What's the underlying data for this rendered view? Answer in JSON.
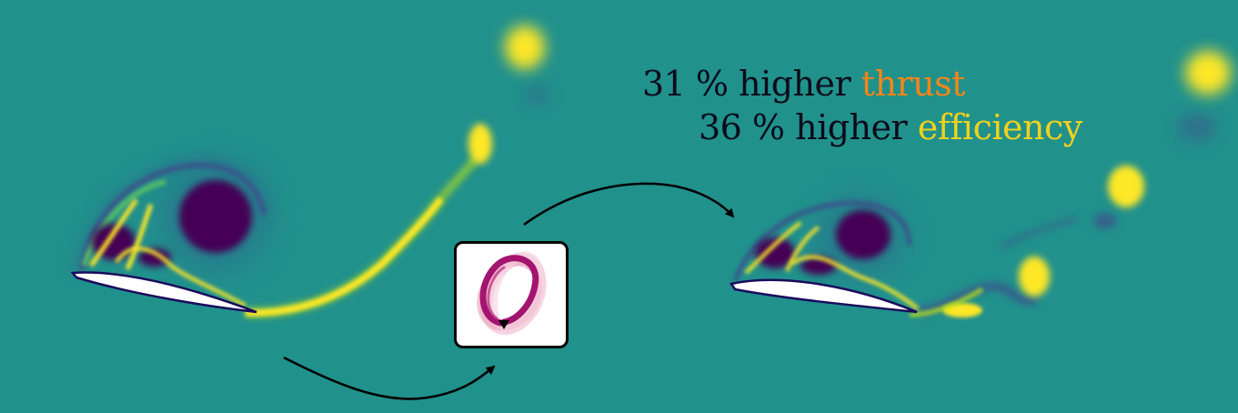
{
  "headline": {
    "thrust_line": {
      "prefix": "31 % higher",
      "highlight": "thrust",
      "highlight_color": "#f58518"
    },
    "efficiency_line": {
      "prefix": "36 % higher",
      "highlight": "efficiency",
      "highlight_color": "#f0d21c"
    }
  },
  "colors": {
    "background": "#21918c",
    "vortex_dark": "#440154",
    "vortex_bright": "#fde725",
    "airfoil": "#ffffff",
    "optimizer_accent": "#a3146f",
    "arrow": "#000000"
  },
  "icons": {
    "optimizer": "optimization-loop-icon",
    "arrow": "curved-arrow-icon"
  }
}
